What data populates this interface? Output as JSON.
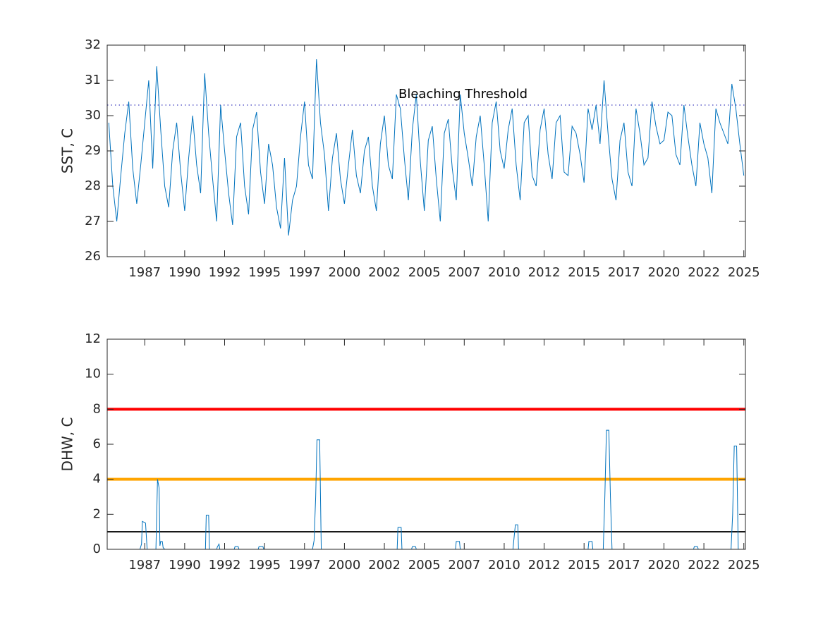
{
  "chart_data": [
    {
      "type": "line",
      "ylabel": "SST, C",
      "annotation": "Bleaching Threshold",
      "threshold": {
        "value": 30.3,
        "color": "#3f3fbf",
        "style": "dotted"
      },
      "xlim": [
        1985.15,
        2025.1
      ],
      "xticks": [
        {
          "value": 1987.5,
          "label": "1987"
        },
        {
          "value": 1990.0,
          "label": "1990"
        },
        {
          "value": 1992.5,
          "label": "1992"
        },
        {
          "value": 1995.0,
          "label": "1995"
        },
        {
          "value": 1997.5,
          "label": "1997"
        },
        {
          "value": 2000.0,
          "label": "2000"
        },
        {
          "value": 2002.5,
          "label": "2002"
        },
        {
          "value": 2005.0,
          "label": "2005"
        },
        {
          "value": 2007.5,
          "label": "2007"
        },
        {
          "value": 2010.0,
          "label": "2010"
        },
        {
          "value": 2012.5,
          "label": "2012"
        },
        {
          "value": 2015.0,
          "label": "2015"
        },
        {
          "value": 2017.5,
          "label": "2017"
        },
        {
          "value": 2020.0,
          "label": "2020"
        },
        {
          "value": 2022.5,
          "label": "2022"
        },
        {
          "value": 2025.0,
          "label": "2025"
        }
      ],
      "ylim": [
        26,
        32
      ],
      "yticks": [
        26,
        27,
        28,
        29,
        30,
        31,
        32
      ],
      "x": [
        1985.25,
        1985.5,
        1985.75,
        1986.0,
        1986.25,
        1986.5,
        1986.75,
        1987.0,
        1987.25,
        1987.5,
        1987.75,
        1988.0,
        1988.25,
        1988.5,
        1988.75,
        1989.0,
        1989.25,
        1989.5,
        1989.75,
        1990.0,
        1990.25,
        1990.5,
        1990.75,
        1991.0,
        1991.25,
        1991.5,
        1991.75,
        1992.0,
        1992.25,
        1992.5,
        1992.75,
        1993.0,
        1993.25,
        1993.5,
        1993.75,
        1994.0,
        1994.25,
        1994.5,
        1994.75,
        1995.0,
        1995.25,
        1995.5,
        1995.75,
        1996.0,
        1996.25,
        1996.5,
        1996.75,
        1997.0,
        1997.25,
        1997.5,
        1997.75,
        1998.0,
        1998.25,
        1998.5,
        1998.75,
        1999.0,
        1999.25,
        1999.5,
        1999.75,
        2000.0,
        2000.25,
        2000.5,
        2000.75,
        2001.0,
        2001.25,
        2001.5,
        2001.75,
        2002.0,
        2002.25,
        2002.5,
        2002.75,
        2003.0,
        2003.25,
        2003.5,
        2003.75,
        2004.0,
        2004.25,
        2004.5,
        2004.75,
        2005.0,
        2005.25,
        2005.5,
        2005.75,
        2006.0,
        2006.25,
        2006.5,
        2006.75,
        2007.0,
        2007.25,
        2007.5,
        2007.75,
        2008.0,
        2008.25,
        2008.5,
        2008.75,
        2009.0,
        2009.25,
        2009.5,
        2009.75,
        2010.0,
        2010.25,
        2010.5,
        2010.75,
        2011.0,
        2011.25,
        2011.5,
        2011.75,
        2012.0,
        2012.25,
        2012.5,
        2012.75,
        2013.0,
        2013.25,
        2013.5,
        2013.75,
        2014.0,
        2014.25,
        2014.5,
        2014.75,
        2015.0,
        2015.25,
        2015.5,
        2015.75,
        2016.0,
        2016.25,
        2016.5,
        2016.75,
        2017.0,
        2017.25,
        2017.5,
        2017.75,
        2018.0,
        2018.25,
        2018.5,
        2018.75,
        2019.0,
        2019.25,
        2019.5,
        2019.75,
        2020.0,
        2020.25,
        2020.5,
        2020.75,
        2021.0,
        2021.25,
        2021.5,
        2021.75,
        2022.0,
        2022.25,
        2022.5,
        2022.75,
        2023.0,
        2023.25,
        2023.5,
        2023.75,
        2024.0,
        2024.25,
        2024.5,
        2024.75,
        2025.0
      ],
      "series": [
        {
          "color": "#0072bd",
          "values": [
            29.8,
            28.0,
            27.0,
            28.3,
            29.5,
            30.4,
            28.5,
            27.5,
            28.6,
            29.8,
            31.0,
            28.5,
            31.4,
            29.6,
            28.0,
            27.4,
            29.0,
            29.8,
            28.4,
            27.3,
            28.8,
            30.0,
            28.6,
            27.8,
            31.2,
            29.5,
            28.2,
            27.0,
            30.3,
            29.0,
            27.8,
            26.9,
            29.4,
            29.8,
            28.0,
            27.2,
            29.6,
            30.1,
            28.4,
            27.5,
            29.2,
            28.6,
            27.4,
            26.8,
            28.8,
            26.6,
            27.6,
            28.0,
            29.4,
            30.4,
            28.6,
            28.2,
            31.6,
            29.8,
            28.9,
            27.3,
            28.8,
            29.5,
            28.2,
            27.5,
            28.6,
            29.6,
            28.3,
            27.8,
            29.0,
            29.4,
            28.0,
            27.3,
            29.2,
            30.0,
            28.6,
            28.2,
            30.6,
            30.2,
            28.8,
            27.6,
            29.6,
            30.6,
            28.7,
            27.3,
            29.3,
            29.7,
            28.2,
            27.0,
            29.5,
            29.9,
            28.5,
            27.6,
            30.6,
            29.5,
            28.8,
            28.0,
            29.4,
            30.0,
            28.6,
            27.0,
            29.8,
            30.4,
            29.0,
            28.5,
            29.6,
            30.2,
            28.6,
            27.6,
            29.8,
            30.0,
            28.3,
            28.0,
            29.6,
            30.2,
            28.9,
            28.2,
            29.8,
            30.0,
            28.4,
            28.3,
            29.7,
            29.5,
            28.9,
            28.1,
            30.2,
            29.6,
            30.3,
            29.2,
            31.0,
            29.5,
            28.2,
            27.6,
            29.3,
            29.8,
            28.4,
            28.0,
            30.2,
            29.5,
            28.6,
            28.8,
            30.4,
            29.7,
            29.2,
            29.3,
            30.1,
            30.0,
            28.9,
            28.6,
            30.3,
            29.4,
            28.6,
            28.0,
            29.8,
            29.2,
            28.8,
            27.8,
            30.2,
            29.8,
            29.5,
            29.2,
            30.9,
            30.2,
            29.2,
            28.3
          ]
        }
      ]
    },
    {
      "type": "line",
      "ylabel": "DHW, C",
      "hlines": [
        {
          "value": 8,
          "color": "#ff0000"
        },
        {
          "value": 4,
          "color": "#ffa500"
        },
        {
          "value": 1,
          "color": "#000000"
        }
      ],
      "xlim": [
        1985.15,
        2025.1
      ],
      "xticks": [
        {
          "value": 1987.5,
          "label": "1987"
        },
        {
          "value": 1990.0,
          "label": "1990"
        },
        {
          "value": 1992.5,
          "label": "1992"
        },
        {
          "value": 1995.0,
          "label": "1995"
        },
        {
          "value": 1997.5,
          "label": "1997"
        },
        {
          "value": 2000.0,
          "label": "2000"
        },
        {
          "value": 2002.5,
          "label": "2002"
        },
        {
          "value": 2005.0,
          "label": "2005"
        },
        {
          "value": 2007.5,
          "label": "2007"
        },
        {
          "value": 2010.0,
          "label": "2010"
        },
        {
          "value": 2012.5,
          "label": "2012"
        },
        {
          "value": 2015.0,
          "label": "2015"
        },
        {
          "value": 2017.5,
          "label": "2017"
        },
        {
          "value": 2020.0,
          "label": "2020"
        },
        {
          "value": 2022.5,
          "label": "2022"
        },
        {
          "value": 2025.0,
          "label": "2025"
        }
      ],
      "ylim": [
        0,
        12
      ],
      "yticks": [
        0,
        2,
        4,
        6,
        8,
        10,
        12
      ],
      "x": [
        1985.15,
        1987.2,
        1987.3,
        1987.35,
        1987.55,
        1987.65,
        1988.2,
        1988.25,
        1988.3,
        1988.4,
        1988.45,
        1988.5,
        1988.6,
        1988.65,
        1988.75,
        1991.3,
        1991.35,
        1991.5,
        1991.55,
        1992.0,
        1992.05,
        1992.15,
        1992.2,
        1993.1,
        1993.15,
        1993.35,
        1993.4,
        1994.6,
        1994.65,
        1994.9,
        1994.95,
        1998.0,
        1998.1,
        1998.2,
        1998.28,
        1998.45,
        1998.55,
        2003.3,
        2003.35,
        2003.55,
        2003.6,
        2004.2,
        2004.25,
        2004.45,
        2004.5,
        2006.95,
        2007.0,
        2007.2,
        2007.25,
        2010.55,
        2010.6,
        2010.7,
        2010.85,
        2010.9,
        2015.25,
        2015.3,
        2015.5,
        2015.55,
        2016.2,
        2016.3,
        2016.4,
        2016.55,
        2016.65,
        2016.75,
        2021.85,
        2021.9,
        2022.1,
        2022.15,
        2024.2,
        2024.3,
        2024.4,
        2024.55,
        2024.65,
        2025.1
      ],
      "series": [
        {
          "color": "#0072bd",
          "values": [
            0,
            0,
            0.3,
            1.6,
            1.5,
            0,
            0,
            2,
            4,
            3.5,
            0.2,
            0.45,
            0.45,
            0.1,
            0,
            0,
            1.95,
            1.95,
            0,
            0,
            0.15,
            0.3,
            0,
            0,
            0.15,
            0.15,
            0,
            0,
            0.15,
            0.15,
            0,
            0,
            0.5,
            3,
            6.25,
            6.25,
            0,
            0,
            1.25,
            1.25,
            0,
            0,
            0.15,
            0.15,
            0,
            0,
            0.45,
            0.45,
            0,
            0,
            0.5,
            1.4,
            1.4,
            0,
            0,
            0.45,
            0.45,
            0,
            0,
            3,
            6.8,
            6.8,
            3,
            0,
            0,
            0.15,
            0.15,
            0,
            0,
            2,
            5.9,
            5.9,
            0,
            0
          ]
        }
      ]
    }
  ]
}
